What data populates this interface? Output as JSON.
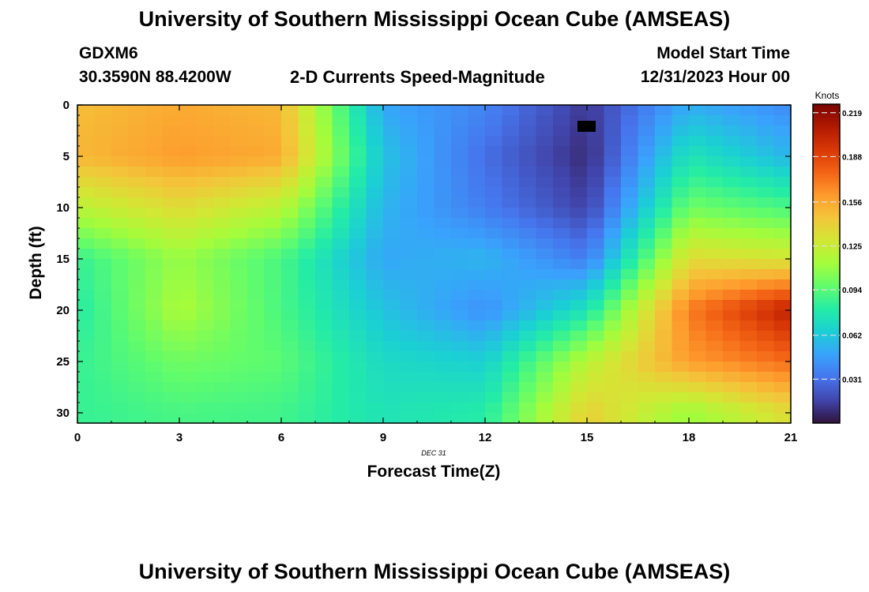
{
  "header": {
    "title": "University of Southern Mississippi Ocean Cube (AMSEAS)",
    "station": "GDXM6",
    "coords": "30.3590N  88.4200W",
    "subtitle": "2-D Currents Speed-Magnitude",
    "model_label": "Model Start Time",
    "model_time": "12/31/2023 Hour 00"
  },
  "footer": {
    "title": "University of Southern Mississippi Ocean Cube (AMSEAS)"
  },
  "chart_data": {
    "type": "heatmap",
    "title": "2-D Currents Speed-Magnitude",
    "xlabel": "Forecast Time(Z)",
    "ylabel": "Depth (ft)",
    "date_label": "DEC 31",
    "xlim": [
      0,
      21
    ],
    "ylim": [
      31,
      0
    ],
    "x_ticks": [
      0,
      3,
      6,
      9,
      12,
      15,
      18,
      21
    ],
    "y_ticks": [
      0,
      5,
      10,
      15,
      20,
      25,
      30
    ],
    "colorbar": {
      "unit": "Knots",
      "ticks": [
        "0.219",
        "0.188",
        "0.156",
        "0.125",
        "0.094",
        "0.062",
        "0.031"
      ],
      "tick_values": [
        0.219,
        0.188,
        0.156,
        0.125,
        0.094,
        0.062,
        0.031
      ],
      "vmin": 0.0,
      "vmax": 0.225,
      "colormap": [
        "#30123b",
        "#4145ab",
        "#4675ed",
        "#39a2fc",
        "#1bcfd4",
        "#24eca6",
        "#61fc6c",
        "#a4fc3b",
        "#d1e834",
        "#f3c63a",
        "#fe9b2d",
        "#f36315",
        "#d93806",
        "#b11901",
        "#7a0402"
      ]
    },
    "grid_hours": [
      0,
      3,
      6,
      9,
      12,
      15,
      18,
      21
    ],
    "grid_depths": [
      0,
      5,
      10,
      15,
      20,
      25,
      30
    ],
    "values": [
      [
        0.148,
        0.155,
        0.15,
        0.05,
        0.038,
        0.012,
        0.052,
        0.04
      ],
      [
        0.15,
        0.16,
        0.155,
        0.06,
        0.03,
        0.008,
        0.075,
        0.055
      ],
      [
        0.12,
        0.135,
        0.12,
        0.055,
        0.035,
        0.015,
        0.1,
        0.09
      ],
      [
        0.085,
        0.11,
        0.09,
        0.05,
        0.055,
        0.035,
        0.135,
        0.13
      ],
      [
        0.08,
        0.115,
        0.09,
        0.06,
        0.042,
        0.075,
        0.17,
        0.205
      ],
      [
        0.085,
        0.1,
        0.095,
        0.07,
        0.065,
        0.12,
        0.16,
        0.175
      ],
      [
        0.085,
        0.09,
        0.088,
        0.075,
        0.08,
        0.14,
        0.11,
        0.135
      ]
    ]
  }
}
